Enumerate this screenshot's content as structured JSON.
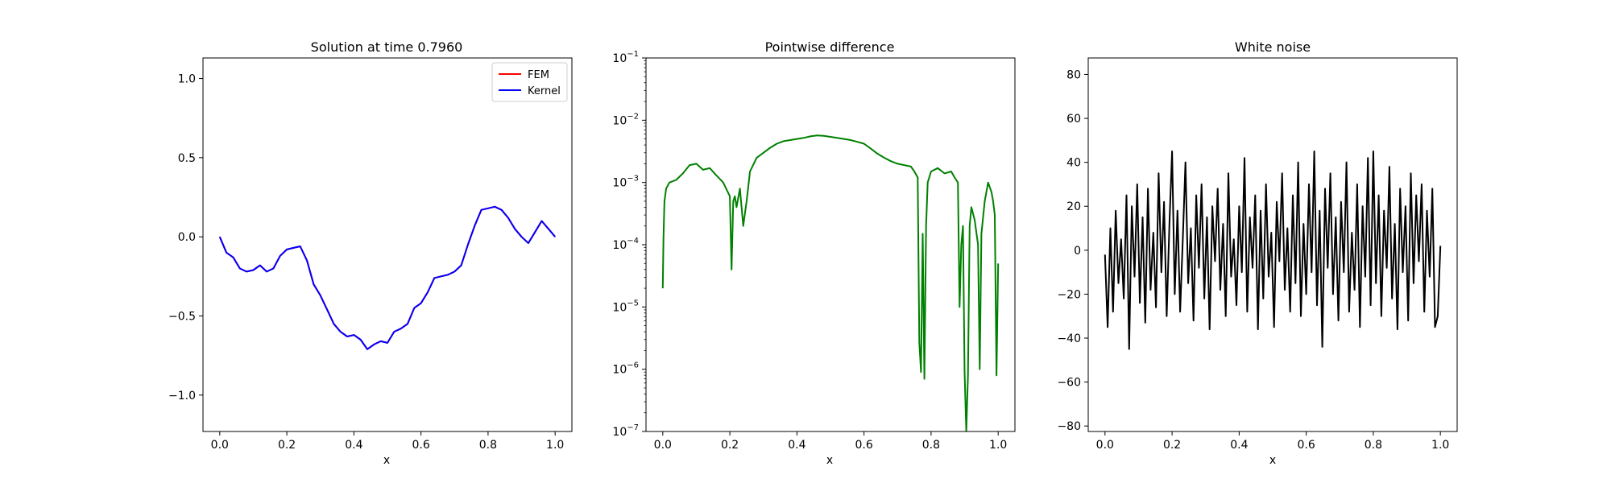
{
  "chart_data": [
    {
      "type": "line",
      "title": "Solution at time 0.7960",
      "xlabel": "x",
      "ylabel": "",
      "xlim": [
        -0.05,
        1.05
      ],
      "ylim": [
        -1.23,
        1.13
      ],
      "xticks": [
        0.0,
        0.2,
        0.4,
        0.6,
        0.8,
        1.0
      ],
      "xtick_labels": [
        "0.0",
        "0.2",
        "0.4",
        "0.6",
        "0.8",
        "1.0"
      ],
      "yticks": [
        -1.0,
        -0.5,
        0.0,
        0.5,
        1.0
      ],
      "ytick_labels": [
        "−1.0",
        "−0.5",
        "0.0",
        "0.5",
        "1.0"
      ],
      "legend": "top-right",
      "series": [
        {
          "name": "FEM",
          "color": "#ff0000",
          "x": [
            0.0,
            0.02,
            0.04,
            0.06,
            0.08,
            0.1,
            0.12,
            0.14,
            0.16,
            0.18,
            0.2,
            0.22,
            0.24,
            0.26,
            0.28,
            0.3,
            0.32,
            0.34,
            0.36,
            0.38,
            0.4,
            0.42,
            0.44,
            0.46,
            0.48,
            0.5,
            0.52,
            0.54,
            0.56,
            0.58,
            0.6,
            0.62,
            0.64,
            0.66,
            0.68,
            0.7,
            0.72,
            0.74,
            0.76,
            0.78,
            0.8,
            0.82,
            0.84,
            0.86,
            0.88,
            0.9,
            0.92,
            0.94,
            0.96,
            0.98,
            1.0
          ],
          "y": [
            0.0,
            -0.1,
            -0.13,
            -0.2,
            -0.22,
            -0.21,
            -0.18,
            -0.22,
            -0.2,
            -0.12,
            -0.08,
            -0.07,
            -0.06,
            -0.15,
            -0.3,
            -0.37,
            -0.46,
            -0.55,
            -0.6,
            -0.63,
            -0.62,
            -0.65,
            -0.71,
            -0.68,
            -0.66,
            -0.67,
            -0.6,
            -0.58,
            -0.55,
            -0.45,
            -0.42,
            -0.35,
            -0.26,
            -0.25,
            -0.24,
            -0.22,
            -0.18,
            -0.05,
            0.07,
            0.17,
            0.18,
            0.19,
            0.17,
            0.12,
            0.05,
            0.0,
            -0.04,
            0.03,
            0.1,
            0.05,
            0.0
          ]
        },
        {
          "name": "Kernel",
          "color": "#0000ff",
          "x": [
            0.0,
            0.02,
            0.04,
            0.06,
            0.08,
            0.1,
            0.12,
            0.14,
            0.16,
            0.18,
            0.2,
            0.22,
            0.24,
            0.26,
            0.28,
            0.3,
            0.32,
            0.34,
            0.36,
            0.38,
            0.4,
            0.42,
            0.44,
            0.46,
            0.48,
            0.5,
            0.52,
            0.54,
            0.56,
            0.58,
            0.6,
            0.62,
            0.64,
            0.66,
            0.68,
            0.7,
            0.72,
            0.74,
            0.76,
            0.78,
            0.8,
            0.82,
            0.84,
            0.86,
            0.88,
            0.9,
            0.92,
            0.94,
            0.96,
            0.98,
            1.0
          ],
          "y": [
            0.0,
            -0.1,
            -0.13,
            -0.2,
            -0.22,
            -0.21,
            -0.18,
            -0.22,
            -0.2,
            -0.12,
            -0.08,
            -0.07,
            -0.06,
            -0.15,
            -0.3,
            -0.37,
            -0.46,
            -0.55,
            -0.6,
            -0.63,
            -0.62,
            -0.65,
            -0.71,
            -0.68,
            -0.66,
            -0.67,
            -0.6,
            -0.58,
            -0.55,
            -0.45,
            -0.42,
            -0.35,
            -0.26,
            -0.25,
            -0.24,
            -0.22,
            -0.18,
            -0.05,
            0.07,
            0.17,
            0.18,
            0.19,
            0.17,
            0.12,
            0.05,
            0.0,
            -0.04,
            0.03,
            0.1,
            0.05,
            0.0
          ]
        }
      ]
    },
    {
      "type": "line",
      "title": "Pointwise difference",
      "xlabel": "x",
      "ylabel": "",
      "yscale": "log",
      "xlim": [
        -0.05,
        1.05
      ],
      "ylim": [
        1e-07,
        0.1
      ],
      "xticks": [
        0.0,
        0.2,
        0.4,
        0.6,
        0.8,
        1.0
      ],
      "xtick_labels": [
        "0.0",
        "0.2",
        "0.4",
        "0.6",
        "0.8",
        "1.0"
      ],
      "yticks": [
        1e-07,
        1e-06,
        1e-05,
        0.0001,
        0.001,
        0.01,
        0.1
      ],
      "ytick_exponents": [
        "−7",
        "−6",
        "−5",
        "−4",
        "−3",
        "−2",
        "−1"
      ],
      "ytick_base": "10",
      "series": [
        {
          "color": "#008000",
          "x": [
            0.0,
            0.002,
            0.005,
            0.01,
            0.02,
            0.04,
            0.06,
            0.08,
            0.1,
            0.12,
            0.14,
            0.16,
            0.18,
            0.2,
            0.205,
            0.21,
            0.215,
            0.22,
            0.23,
            0.24,
            0.25,
            0.26,
            0.28,
            0.3,
            0.32,
            0.34,
            0.36,
            0.38,
            0.4,
            0.42,
            0.44,
            0.46,
            0.48,
            0.5,
            0.52,
            0.54,
            0.56,
            0.58,
            0.6,
            0.62,
            0.64,
            0.66,
            0.68,
            0.7,
            0.72,
            0.74,
            0.75,
            0.76,
            0.765,
            0.77,
            0.775,
            0.78,
            0.785,
            0.79,
            0.8,
            0.82,
            0.84,
            0.86,
            0.87,
            0.88,
            0.885,
            0.89,
            0.895,
            0.9,
            0.905,
            0.91,
            0.915,
            0.92,
            0.93,
            0.94,
            0.945,
            0.95,
            0.96,
            0.97,
            0.98,
            0.985,
            0.99,
            0.995,
            1.0
          ],
          "y": [
            2e-05,
            0.00013,
            0.0005,
            0.0008,
            0.001,
            0.0011,
            0.0014,
            0.0019,
            0.002,
            0.0016,
            0.0017,
            0.0013,
            0.001,
            0.0006,
            4e-05,
            0.0005,
            0.0006,
            0.0004,
            0.0008,
            0.0002,
            0.0005,
            0.0015,
            0.0025,
            0.003,
            0.0036,
            0.0042,
            0.0046,
            0.0048,
            0.005,
            0.0052,
            0.0055,
            0.0057,
            0.0056,
            0.0054,
            0.0052,
            0.005,
            0.0048,
            0.0045,
            0.0042,
            0.0035,
            0.0029,
            0.0025,
            0.0022,
            0.002,
            0.0019,
            0.0018,
            0.0015,
            0.0012,
            2.7e-06,
            9e-07,
            0.00015,
            7e-07,
            0.0002,
            0.001,
            0.0015,
            0.0017,
            0.0014,
            0.0015,
            0.0012,
            0.001,
            1e-05,
            0.0001,
            0.0002,
            9e-07,
            1e-07,
            8e-07,
            0.0002,
            0.0004,
            0.00025,
            0.0001,
            1e-06,
            0.00015,
            0.0005,
            0.001,
            0.0007,
            0.0005,
            0.0003,
            8e-07,
            5e-05
          ]
        }
      ]
    },
    {
      "type": "line",
      "title": "White noise",
      "xlabel": "x",
      "ylabel": "",
      "xlim": [
        -0.05,
        1.05
      ],
      "ylim": [
        -82.5,
        87.5
      ],
      "xticks": [
        0.0,
        0.2,
        0.4,
        0.6,
        0.8,
        1.0
      ],
      "xtick_labels": [
        "0.0",
        "0.2",
        "0.4",
        "0.6",
        "0.8",
        "1.0"
      ],
      "yticks": [
        -80,
        -60,
        -40,
        -20,
        0,
        20,
        40,
        60,
        80
      ],
      "ytick_labels": [
        "−80",
        "−60",
        "−40",
        "−20",
        "0",
        "20",
        "40",
        "60",
        "80"
      ],
      "series": [
        {
          "color": "#000000",
          "x": [
            0.0,
            0.008,
            0.016,
            0.024,
            0.032,
            0.04,
            0.048,
            0.056,
            0.064,
            0.072,
            0.08,
            0.088,
            0.096,
            0.104,
            0.112,
            0.12,
            0.128,
            0.136,
            0.144,
            0.152,
            0.16,
            0.168,
            0.176,
            0.184,
            0.192,
            0.2,
            0.208,
            0.216,
            0.224,
            0.232,
            0.24,
            0.248,
            0.256,
            0.264,
            0.272,
            0.28,
            0.288,
            0.296,
            0.304,
            0.312,
            0.32,
            0.328,
            0.336,
            0.344,
            0.352,
            0.36,
            0.368,
            0.376,
            0.384,
            0.392,
            0.4,
            0.408,
            0.416,
            0.424,
            0.432,
            0.44,
            0.448,
            0.456,
            0.464,
            0.472,
            0.48,
            0.488,
            0.496,
            0.504,
            0.512,
            0.52,
            0.528,
            0.536,
            0.544,
            0.552,
            0.56,
            0.568,
            0.576,
            0.584,
            0.592,
            0.6,
            0.608,
            0.616,
            0.624,
            0.632,
            0.64,
            0.648,
            0.656,
            0.664,
            0.672,
            0.68,
            0.688,
            0.696,
            0.704,
            0.712,
            0.72,
            0.728,
            0.736,
            0.744,
            0.752,
            0.76,
            0.768,
            0.776,
            0.784,
            0.792,
            0.8,
            0.808,
            0.816,
            0.824,
            0.832,
            0.84,
            0.848,
            0.856,
            0.864,
            0.872,
            0.88,
            0.888,
            0.896,
            0.904,
            0.912,
            0.92,
            0.928,
            0.936,
            0.944,
            0.952,
            0.96,
            0.968,
            0.976,
            0.984,
            0.992,
            1.0
          ],
          "y": [
            -2,
            -35,
            10,
            -28,
            18,
            -15,
            5,
            -22,
            25,
            -45,
            20,
            -12,
            30,
            -24,
            15,
            -33,
            28,
            -18,
            8,
            -26,
            35,
            -10,
            22,
            -30,
            12,
            45,
            -20,
            18,
            -28,
            5,
            40,
            -15,
            10,
            -32,
            25,
            -8,
            30,
            -22,
            15,
            -36,
            20,
            -5,
            28,
            -18,
            12,
            -30,
            35,
            -12,
            5,
            -25,
            20,
            -10,
            42,
            -28,
            15,
            -8,
            25,
            -36,
            18,
            -22,
            30,
            -12,
            8,
            -35,
            22,
            -5,
            35,
            -18,
            10,
            -28,
            25,
            -15,
            40,
            -30,
            12,
            -20,
            30,
            -10,
            45,
            -25,
            18,
            -44,
            28,
            -8,
            35,
            -20,
            15,
            -32,
            22,
            -10,
            40,
            -28,
            8,
            -18,
            30,
            -35,
            20,
            -12,
            42,
            -25,
            45,
            -15,
            25,
            -30,
            18,
            -8,
            38,
            -22,
            12,
            -36,
            28,
            -10,
            20,
            -32,
            35,
            -15,
            25,
            -5,
            30,
            -28,
            18,
            -12,
            28,
            -35,
            -30,
            2
          ]
        }
      ]
    }
  ]
}
